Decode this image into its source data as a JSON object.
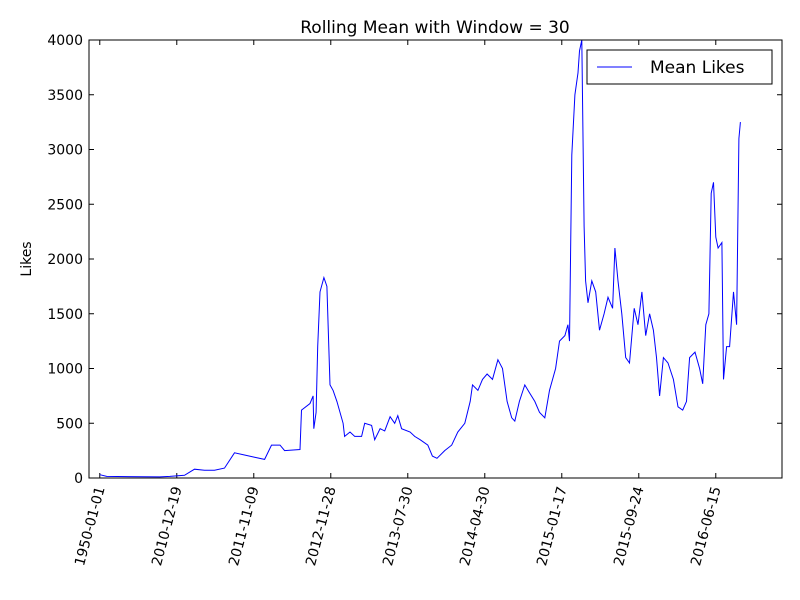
{
  "chart_data": {
    "type": "line",
    "title": "Rolling Mean with Window = 30",
    "y_label": "Likes",
    "x": [
      0,
      9,
      78,
      91,
      110,
      123,
      136,
      149,
      162,
      175,
      188,
      201,
      214,
      223,
      234,
      240,
      260,
      262,
      273,
      277,
      278,
      281,
      283,
      286,
      288,
      291,
      295,
      299,
      303,
      308,
      316,
      318,
      325,
      331,
      340,
      344,
      353,
      357,
      364,
      370,
      377,
      383,
      387,
      392,
      403,
      409,
      416,
      426,
      432,
      438,
      448,
      457,
      465,
      474,
      481,
      484,
      491,
      497,
      503,
      510,
      517,
      523,
      529,
      535,
      539,
      545,
      552,
      558,
      565,
      571,
      578,
      584,
      592,
      597,
      604,
      608,
      610,
      613,
      617,
      621,
      623,
      626,
      629,
      631,
      634,
      639,
      644,
      649,
      655,
      660,
      666,
      669,
      673,
      678,
      683,
      688,
      694,
      699,
      704,
      709,
      714,
      719,
      723,
      727,
      732,
      738,
      745,
      751,
      757,
      762,
      766,
      773,
      779,
      783,
      787,
      791,
      794,
      797,
      800,
      803,
      808,
      810,
      814,
      818,
      823,
      827,
      830,
      832
    ],
    "series": [
      {
        "name": "Mean Likes",
        "color": "#0000ff",
        "values": [
          30,
          15,
          10,
          15,
          25,
          80,
          70,
          70,
          90,
          230,
          210,
          190,
          170,
          300,
          300,
          250,
          260,
          620,
          680,
          750,
          450,
          600,
          1200,
          1700,
          1750,
          1830,
          1750,
          850,
          800,
          700,
          500,
          380,
          420,
          380,
          380,
          500,
          480,
          350,
          450,
          430,
          560,
          500,
          570,
          450,
          420,
          380,
          350,
          300,
          200,
          180,
          250,
          300,
          420,
          500,
          700,
          850,
          800,
          900,
          950,
          900,
          1080,
          1000,
          700,
          550,
          520,
          700,
          850,
          780,
          700,
          600,
          550,
          800,
          1000,
          1250,
          1300,
          1400,
          1250,
          2950,
          3500,
          3700,
          3900,
          4000,
          2300,
          1800,
          1600,
          1800,
          1700,
          1350,
          1500,
          1650,
          1550,
          2100,
          1800,
          1500,
          1100,
          1050,
          1550,
          1400,
          1700,
          1300,
          1500,
          1350,
          1100,
          750,
          1100,
          1050,
          900,
          650,
          620,
          700,
          1100,
          1150,
          1000,
          860,
          1400,
          1500,
          2600,
          2700,
          2200,
          2100,
          2150,
          900,
          1200,
          1200,
          1700,
          1400,
          3100,
          3250
        ]
      }
    ],
    "xlim": [
      -14,
      886
    ],
    "xticks": [
      {
        "value": 0,
        "label": "1950-01-01"
      },
      {
        "value": 100,
        "label": "2010-12-19"
      },
      {
        "value": 200,
        "label": "2011-11-09"
      },
      {
        "value": 300,
        "label": "2012-11-28"
      },
      {
        "value": 400,
        "label": "2013-07-30"
      },
      {
        "value": 500,
        "label": "2014-04-30"
      },
      {
        "value": 600,
        "label": "2015-01-17"
      },
      {
        "value": 700,
        "label": "2015-09-24"
      },
      {
        "value": 800,
        "label": "2016-06-15"
      }
    ],
    "ylim": [
      0,
      4000
    ],
    "yticks": [
      0,
      500,
      1000,
      1500,
      2000,
      2500,
      3000,
      3500,
      4000
    ],
    "legend": "upper right"
  }
}
